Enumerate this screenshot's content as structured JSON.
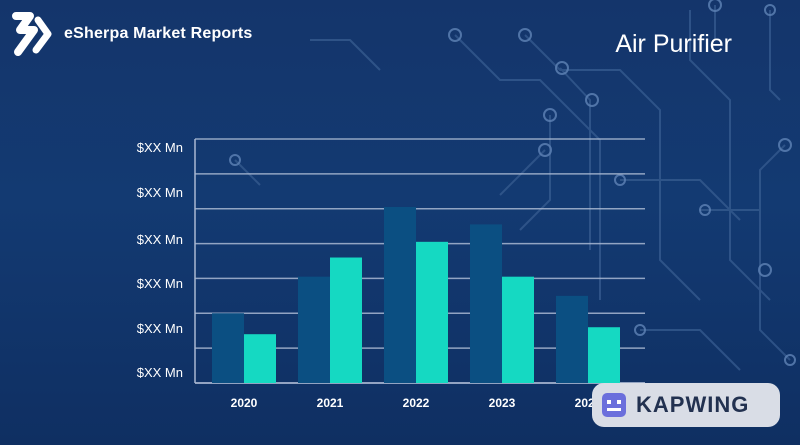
{
  "brand": {
    "name": "eSherpa Market Reports"
  },
  "header": {
    "title": "Air Purifier"
  },
  "watermark": {
    "text": "KAPWING"
  },
  "colors": {
    "series_dark": "#0b4f82",
    "series_light": "#15d9c2",
    "grid": "#a9b8d2"
  },
  "chart_data": {
    "type": "bar",
    "categories": [
      "2020",
      "2021",
      "2022",
      "2023",
      "2024"
    ],
    "y_tick_labels": [
      "$XX Mn",
      "$XX Mn",
      "$XX Mn",
      "$XX Mn",
      "$XX Mn",
      "$XX Mn"
    ],
    "series": [
      {
        "values": [
          2.0,
          3.05,
          5.05,
          4.55,
          2.5
        ]
      },
      {
        "values": [
          1.4,
          3.6,
          4.05,
          3.05,
          1.6
        ]
      }
    ],
    "ylim": [
      0,
      7
    ],
    "grid": true,
    "legend": "none"
  }
}
